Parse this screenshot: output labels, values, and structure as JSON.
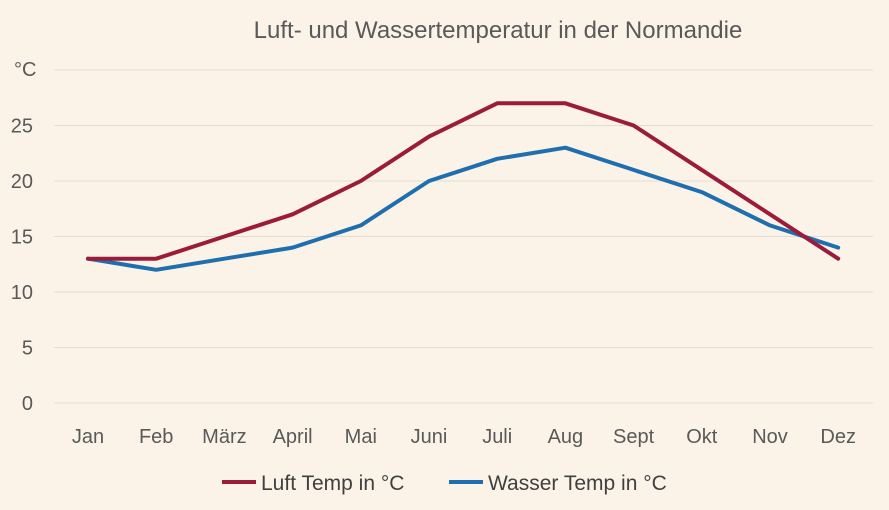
{
  "chart_data": {
    "type": "line",
    "title": "Luft- und Wassertemperatur in der Normandie",
    "ylabel": "°C",
    "xlabel": "",
    "categories": [
      "Jan",
      "Feb",
      "März",
      "April",
      "Mai",
      "Juni",
      "Juli",
      "Aug",
      "Sept",
      "Okt",
      "Nov",
      "Dez"
    ],
    "series": [
      {
        "name": "Luft Temp in °C",
        "color": "#9b1b3a",
        "values": [
          13,
          13,
          15,
          17,
          20,
          24,
          27,
          27,
          25,
          21,
          17,
          13
        ]
      },
      {
        "name": "Wasser Temp in °C",
        "color": "#1f6fb0",
        "values": [
          13,
          12,
          13,
          14,
          16,
          20,
          22,
          23,
          21,
          19,
          16,
          14
        ]
      }
    ],
    "ylim": [
      0,
      30
    ],
    "yticks": [
      0,
      5,
      10,
      15,
      20,
      25
    ],
    "grid": true,
    "legend": "bottom"
  },
  "colors": {
    "background": "#fcf3e8",
    "gridline": "#e3dcd2",
    "text": "#595959"
  }
}
